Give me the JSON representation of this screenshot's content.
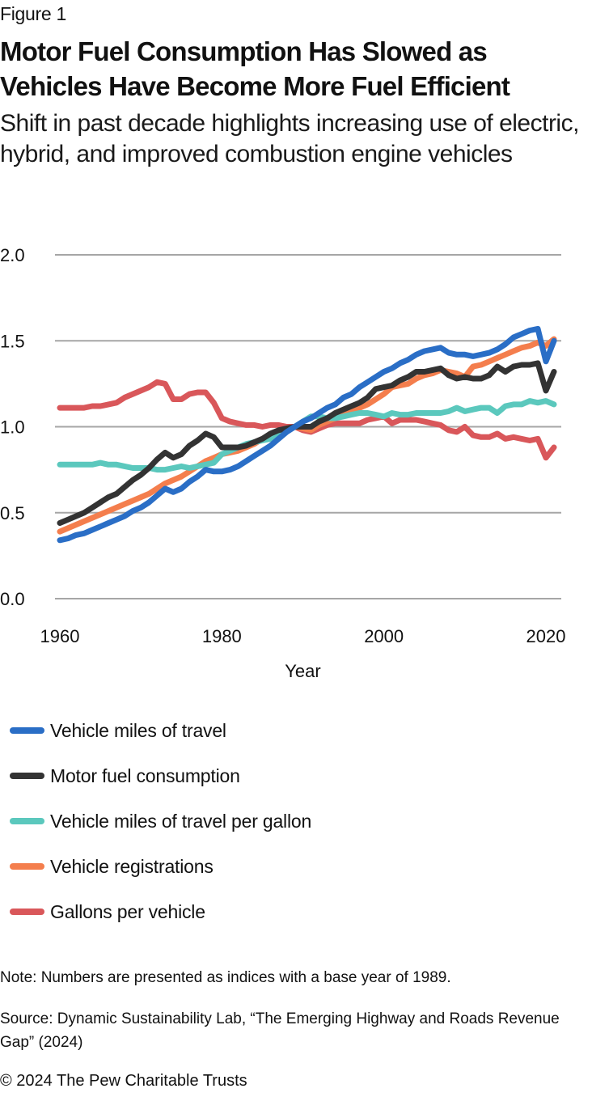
{
  "figure_label": "Figure 1",
  "title": "Motor Fuel Consumption Has Slowed as Vehicles Have Become More Fuel Efficient",
  "subtitle": "Shift in past decade highlights increasing use of electric, hybrid, and improved combustion engine vehicles",
  "note": "Note: Numbers are presented as indices with a base year of 1989.",
  "source": "Source: Dynamic Sustainability Lab, “The Emerging Highway and Roads Revenue Gap” (2024)",
  "copyright": "© 2024 The Pew Charitable Trusts",
  "chart_data": {
    "type": "line",
    "title": "Motor Fuel Consumption Has Slowed as Vehicles Have Become More Fuel Efficient",
    "xlabel": "Year",
    "ylabel": "",
    "xlim": [
      1960,
      2021
    ],
    "ylim": [
      0,
      2.0
    ],
    "xticks": [
      1960,
      1980,
      2000,
      2020
    ],
    "yticks": [
      0.0,
      0.5,
      1.0,
      1.5,
      2.0
    ],
    "ytick_labels": [
      "0.0",
      "0.5",
      "1.0",
      "1.5",
      "2.0"
    ],
    "grid": "horizontal",
    "legend_position": "bottom",
    "x_start": 1960,
    "series": [
      {
        "name": "Vehicle miles of travel",
        "color": "#2a6ec6",
        "values": [
          0.34,
          0.35,
          0.37,
          0.38,
          0.4,
          0.42,
          0.44,
          0.46,
          0.48,
          0.51,
          0.53,
          0.56,
          0.6,
          0.64,
          0.62,
          0.64,
          0.68,
          0.71,
          0.75,
          0.74,
          0.74,
          0.75,
          0.77,
          0.8,
          0.83,
          0.86,
          0.89,
          0.93,
          0.97,
          1.0,
          1.03,
          1.05,
          1.08,
          1.11,
          1.13,
          1.17,
          1.19,
          1.23,
          1.26,
          1.29,
          1.32,
          1.34,
          1.37,
          1.39,
          1.42,
          1.44,
          1.45,
          1.46,
          1.43,
          1.42,
          1.42,
          1.41,
          1.42,
          1.43,
          1.45,
          1.48,
          1.52,
          1.54,
          1.56,
          1.57,
          1.38,
          1.5
        ]
      },
      {
        "name": "Motor fuel consumption",
        "color": "#333333",
        "values": [
          0.44,
          0.46,
          0.48,
          0.5,
          0.53,
          0.56,
          0.59,
          0.61,
          0.65,
          0.69,
          0.72,
          0.76,
          0.81,
          0.85,
          0.82,
          0.84,
          0.89,
          0.92,
          0.96,
          0.94,
          0.88,
          0.88,
          0.88,
          0.89,
          0.91,
          0.93,
          0.96,
          0.98,
          0.99,
          1.0,
          1.0,
          1.0,
          1.03,
          1.05,
          1.08,
          1.1,
          1.12,
          1.14,
          1.17,
          1.22,
          1.23,
          1.24,
          1.27,
          1.29,
          1.32,
          1.32,
          1.33,
          1.34,
          1.3,
          1.28,
          1.29,
          1.28,
          1.28,
          1.3,
          1.35,
          1.32,
          1.35,
          1.36,
          1.36,
          1.37,
          1.21,
          1.32
        ]
      },
      {
        "name": "Vehicle miles of travel per gallon",
        "color": "#5bc8bd",
        "values": [
          0.78,
          0.78,
          0.78,
          0.78,
          0.78,
          0.79,
          0.78,
          0.78,
          0.77,
          0.76,
          0.76,
          0.76,
          0.75,
          0.75,
          0.76,
          0.77,
          0.76,
          0.77,
          0.78,
          0.79,
          0.84,
          0.86,
          0.88,
          0.9,
          0.91,
          0.92,
          0.93,
          0.95,
          0.98,
          1.0,
          1.03,
          1.06,
          1.06,
          1.05,
          1.05,
          1.06,
          1.07,
          1.08,
          1.08,
          1.07,
          1.06,
          1.08,
          1.07,
          1.07,
          1.08,
          1.08,
          1.08,
          1.08,
          1.09,
          1.11,
          1.09,
          1.1,
          1.11,
          1.11,
          1.08,
          1.12,
          1.13,
          1.13,
          1.15,
          1.14,
          1.15,
          1.13
        ]
      },
      {
        "name": "Vehicle registrations",
        "color": "#f47e4d",
        "values": [
          0.39,
          0.41,
          0.43,
          0.45,
          0.47,
          0.49,
          0.51,
          0.53,
          0.55,
          0.57,
          0.59,
          0.61,
          0.64,
          0.67,
          0.69,
          0.71,
          0.74,
          0.77,
          0.8,
          0.82,
          0.84,
          0.85,
          0.86,
          0.88,
          0.9,
          0.93,
          0.95,
          0.97,
          0.99,
          1.0,
          0.99,
          0.98,
          1.01,
          1.03,
          1.05,
          1.07,
          1.09,
          1.11,
          1.13,
          1.16,
          1.19,
          1.23,
          1.24,
          1.25,
          1.28,
          1.3,
          1.31,
          1.33,
          1.32,
          1.31,
          1.29,
          1.35,
          1.36,
          1.38,
          1.4,
          1.42,
          1.44,
          1.46,
          1.47,
          1.49,
          1.47,
          1.51
        ]
      },
      {
        "name": "Gallons per vehicle",
        "color": "#d9575a",
        "values": [
          1.11,
          1.11,
          1.11,
          1.11,
          1.12,
          1.12,
          1.13,
          1.14,
          1.17,
          1.19,
          1.21,
          1.23,
          1.26,
          1.25,
          1.16,
          1.16,
          1.19,
          1.2,
          1.2,
          1.14,
          1.05,
          1.03,
          1.02,
          1.01,
          1.01,
          1.0,
          1.01,
          1.01,
          1.0,
          1.0,
          0.98,
          0.97,
          0.99,
          1.01,
          1.02,
          1.02,
          1.02,
          1.02,
          1.04,
          1.05,
          1.06,
          1.02,
          1.04,
          1.04,
          1.04,
          1.03,
          1.02,
          1.01,
          0.98,
          0.97,
          1.0,
          0.95,
          0.94,
          0.94,
          0.96,
          0.93,
          0.94,
          0.93,
          0.92,
          0.93,
          0.82,
          0.88
        ]
      }
    ]
  }
}
